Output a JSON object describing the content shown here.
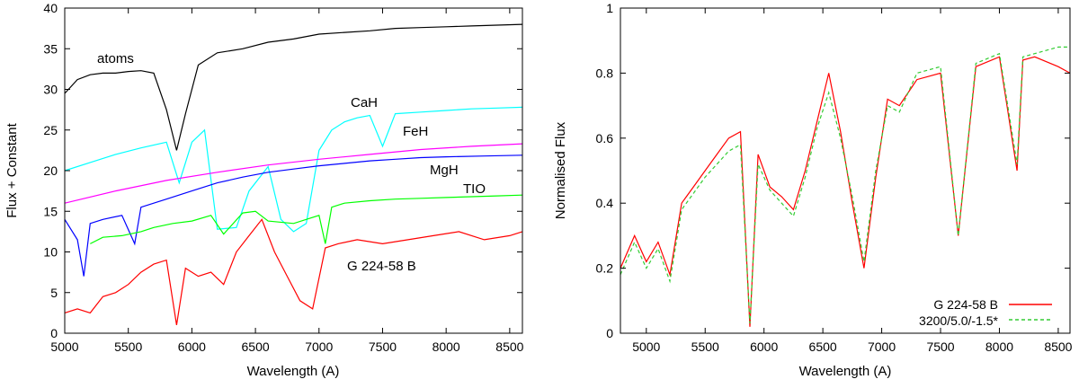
{
  "chart_data": [
    {
      "type": "line",
      "title": "",
      "xlabel": "Wavelength (A)",
      "ylabel": "Flux + Constant",
      "xlim": [
        5000,
        8600
      ],
      "ylim": [
        0,
        40
      ],
      "xticks": [
        5000,
        5500,
        6000,
        6500,
        7000,
        7500,
        8000,
        8500
      ],
      "yticks": [
        0,
        5,
        10,
        15,
        20,
        25,
        30,
        35,
        40
      ],
      "series": [
        {
          "name": "atoms",
          "color": "#000000",
          "x": [
            5000,
            5100,
            5200,
            5300,
            5400,
            5500,
            5600,
            5700,
            5800,
            5880,
            5950,
            6050,
            6200,
            6400,
            6600,
            6800,
            7000,
            7200,
            7400,
            7600,
            7800,
            8000,
            8200,
            8400,
            8600
          ],
          "y": [
            29.5,
            31.2,
            31.8,
            32.0,
            32.0,
            32.2,
            32.3,
            32.0,
            27.5,
            22.5,
            27.0,
            33.0,
            34.5,
            35.0,
            35.8,
            36.2,
            36.8,
            37.0,
            37.2,
            37.5,
            37.6,
            37.7,
            37.8,
            37.9,
            38.0
          ]
        },
        {
          "name": "CaH",
          "color": "#00ffff",
          "x": [
            5000,
            5200,
            5400,
            5600,
            5800,
            5900,
            6000,
            6100,
            6200,
            6350,
            6450,
            6600,
            6700,
            6800,
            6900,
            7000,
            7100,
            7200,
            7300,
            7400,
            7500,
            7600,
            7800,
            8000,
            8200,
            8400,
            8600
          ],
          "y": [
            20.0,
            21.0,
            22.0,
            22.8,
            23.5,
            18.5,
            23.5,
            25.0,
            12.8,
            13.0,
            17.5,
            20.5,
            14.0,
            12.5,
            13.5,
            22.5,
            25.0,
            26.0,
            26.5,
            26.8,
            23.0,
            27.0,
            27.2,
            27.4,
            27.6,
            27.7,
            27.8
          ]
        },
        {
          "name": "FeH",
          "color": "#ff00ff",
          "x": [
            5000,
            5400,
            5800,
            6200,
            6600,
            7000,
            7400,
            7800,
            8200,
            8600
          ],
          "y": [
            16.0,
            17.5,
            18.8,
            19.8,
            20.7,
            21.4,
            22.0,
            22.6,
            23.0,
            23.3
          ]
        },
        {
          "name": "MgH",
          "color": "#0000ff",
          "x": [
            5000,
            5100,
            5150,
            5200,
            5300,
            5450,
            5550,
            5600,
            5800,
            6000,
            6200,
            6400,
            6600,
            6800,
            7000,
            7200,
            7400,
            7600,
            7800,
            8000,
            8300,
            8600
          ],
          "y": [
            14.0,
            11.5,
            7.0,
            13.5,
            14.0,
            14.5,
            11.0,
            15.5,
            16.5,
            17.5,
            18.5,
            19.2,
            19.8,
            20.2,
            20.6,
            20.9,
            21.2,
            21.4,
            21.6,
            21.7,
            21.8,
            21.9
          ]
        },
        {
          "name": "TIO",
          "color": "#00ff00",
          "x": [
            5200,
            5300,
            5450,
            5600,
            5700,
            5850,
            6000,
            6150,
            6250,
            6400,
            6500,
            6600,
            6800,
            7000,
            7050,
            7100,
            7200,
            7400,
            7600,
            7800,
            8000,
            8200,
            8400,
            8600
          ],
          "y": [
            11.0,
            11.8,
            12.0,
            12.5,
            13.0,
            13.5,
            13.8,
            14.5,
            12.2,
            14.8,
            15.0,
            13.8,
            13.5,
            14.5,
            11.0,
            15.5,
            16.0,
            16.3,
            16.5,
            16.6,
            16.7,
            16.8,
            16.9,
            17.0
          ]
        },
        {
          "name": "G 224-58 B",
          "color": "#ff0000",
          "x": [
            5000,
            5100,
            5200,
            5300,
            5400,
            5500,
            5600,
            5700,
            5800,
            5880,
            5950,
            6050,
            6150,
            6250,
            6350,
            6450,
            6550,
            6650,
            6750,
            6850,
            6950,
            7050,
            7150,
            7300,
            7500,
            7700,
            7900,
            8100,
            8300,
            8500,
            8600
          ],
          "y": [
            2.5,
            3.0,
            2.5,
            4.5,
            5.0,
            6.0,
            7.5,
            8.5,
            9.0,
            1.0,
            8.0,
            7.0,
            7.5,
            6.0,
            10.0,
            12.0,
            14.0,
            10.0,
            7.0,
            4.0,
            3.0,
            10.5,
            11.0,
            11.5,
            11.0,
            11.5,
            12.0,
            12.5,
            11.5,
            12.0,
            12.5
          ]
        }
      ],
      "annotations": [
        "atoms",
        "CaH",
        "FeH",
        "MgH",
        "TIO",
        "G 224-58 B"
      ]
    },
    {
      "type": "line",
      "title": "",
      "xlabel": "Wavelength (A)",
      "ylabel": "Normalised Flux",
      "xlim": [
        4780,
        8600
      ],
      "ylim": [
        0,
        1
      ],
      "xticks": [
        5000,
        5500,
        6000,
        6500,
        7000,
        7500,
        8000,
        8500
      ],
      "yticks": [
        "0",
        "0.2",
        "0.4",
        "0.6",
        "0.8",
        "1"
      ],
      "legend_position": "bottom-right",
      "series": [
        {
          "name": "G 224-58 B",
          "color": "#ff0000",
          "x": [
            4780,
            4900,
            5000,
            5100,
            5200,
            5300,
            5400,
            5500,
            5600,
            5700,
            5800,
            5880,
            5950,
            6050,
            6150,
            6250,
            6350,
            6450,
            6550,
            6650,
            6750,
            6850,
            6950,
            7050,
            7150,
            7300,
            7500,
            7650,
            7800,
            8000,
            8150,
            8200,
            8300,
            8500,
            8600
          ],
          "y": [
            0.2,
            0.3,
            0.22,
            0.28,
            0.18,
            0.4,
            0.45,
            0.5,
            0.55,
            0.6,
            0.62,
            0.02,
            0.55,
            0.45,
            0.42,
            0.38,
            0.5,
            0.65,
            0.8,
            0.62,
            0.4,
            0.2,
            0.48,
            0.72,
            0.7,
            0.78,
            0.8,
            0.3,
            0.82,
            0.85,
            0.5,
            0.84,
            0.85,
            0.82,
            0.8
          ]
        },
        {
          "name": "3200/5.0/-1.5*",
          "color": "#33cc33",
          "dashed": true,
          "x": [
            4780,
            4900,
            5000,
            5100,
            5200,
            5300,
            5400,
            5500,
            5600,
            5700,
            5800,
            5880,
            5950,
            6050,
            6150,
            6250,
            6350,
            6450,
            6550,
            6650,
            6750,
            6850,
            6950,
            7050,
            7150,
            7300,
            7500,
            7650,
            7800,
            8000,
            8150,
            8200,
            8300,
            8500,
            8600
          ],
          "y": [
            0.18,
            0.28,
            0.2,
            0.26,
            0.16,
            0.38,
            0.43,
            0.48,
            0.52,
            0.56,
            0.58,
            0.03,
            0.52,
            0.44,
            0.4,
            0.36,
            0.48,
            0.63,
            0.74,
            0.6,
            0.42,
            0.22,
            0.5,
            0.7,
            0.68,
            0.8,
            0.82,
            0.3,
            0.83,
            0.86,
            0.52,
            0.85,
            0.86,
            0.88,
            0.88
          ]
        }
      ]
    }
  ]
}
